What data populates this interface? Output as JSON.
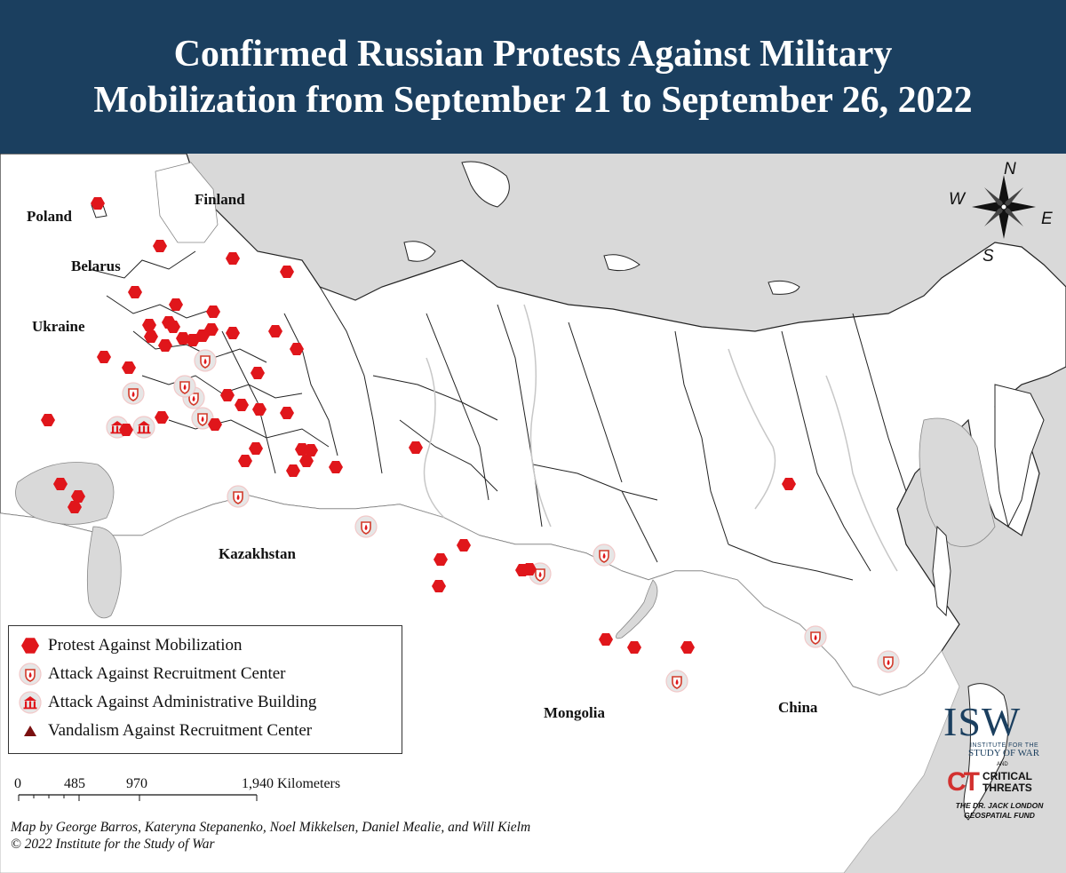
{
  "title": "Confirmed Russian Protests Against Military Mobilization from September 21 to September 26, 2022",
  "colors": {
    "header_bg": "#1b3f5f",
    "land_russia": "#ffffff",
    "land_other": "#ffffff",
    "water": "#d9d9d9",
    "marker_red": "#e0161b",
    "vandalism": "#7a1010"
  },
  "country_labels": {
    "poland": "Poland",
    "belarus": "Belarus",
    "ukraine": "Ukraine",
    "finland": "Finland",
    "kazakhstan": "Kazakhstan",
    "mongolia": "Mongolia",
    "china": "China"
  },
  "compass": {
    "n": "N",
    "s": "S",
    "e": "E",
    "w": "W"
  },
  "legend": {
    "protest": {
      "icon": "red-hexagon-icon",
      "label": "Protest Against Mobilization"
    },
    "recruitment_attack": {
      "icon": "fire-shield-icon",
      "label": "Attack Against Recruitment Center"
    },
    "admin_attack": {
      "icon": "building-icon",
      "label": "Attack Against Administrative Building"
    },
    "vandalism": {
      "icon": "triangle-icon",
      "label": "Vandalism Against Recruitment Center"
    }
  },
  "scale": {
    "t0": "0",
    "t1": "485",
    "t2": "970",
    "t3": "1,940 Kilometers"
  },
  "credit": {
    "line1": "Map by George Barros, Kateryna Stepanenko, Noel Mikkelsen, Daniel Mealie, and Will Kielm",
    "line2": "© 2022 Institute for the Study of War"
  },
  "logos": {
    "isw": "ISW",
    "isw_sub": "INSTITUTE FOR THE",
    "isw_sub2": "STUDY OF WAR",
    "and": "AND",
    "ct_mark": "CT",
    "ct_line1": "CRITICAL",
    "ct_line2": "THREATS",
    "fund_line1": "THE DR. JACK LONDON",
    "fund_line2": "GEOSPATIAL FUND"
  }
}
